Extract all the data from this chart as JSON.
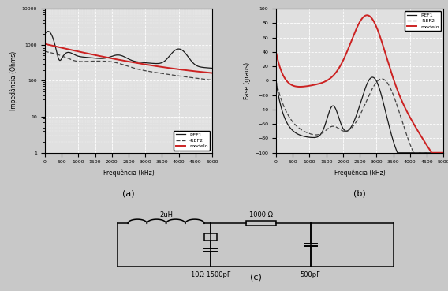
{
  "title_a": "(a)",
  "title_b": "(b)",
  "title_c": "(c)",
  "xlabel": "Freqüência (kHz)",
  "ylabel_a": "Impedância (Ohms)",
  "ylabel_b": "Fase (graus)",
  "xlim": [
    0,
    5000
  ],
  "ylim_a_log": [
    1,
    10000
  ],
  "ylim_b": [
    -100,
    100
  ],
  "xticks": [
    0,
    500,
    1000,
    1500,
    2000,
    2500,
    3000,
    3500,
    4000,
    4500,
    5000
  ],
  "yticks_b": [
    -100,
    -80,
    -60,
    -40,
    -20,
    0,
    20,
    40,
    60,
    80,
    100
  ],
  "legend_labels": [
    "REF1",
    "-REF2",
    "modelo"
  ],
  "bg_color": "#c8c8c8",
  "plot_bg_color": "#e0e0e0",
  "grid_color": "#ffffff",
  "line_color_ref1": "#1a1a1a",
  "line_color_ref2": "#444444",
  "line_color_modelo": "#cc2222",
  "circuit_label_2uH": "2uH",
  "circuit_label_1000": "1000 Ω",
  "circuit_label_10": "10Ω 1500pF",
  "circuit_label_500": "500pF"
}
